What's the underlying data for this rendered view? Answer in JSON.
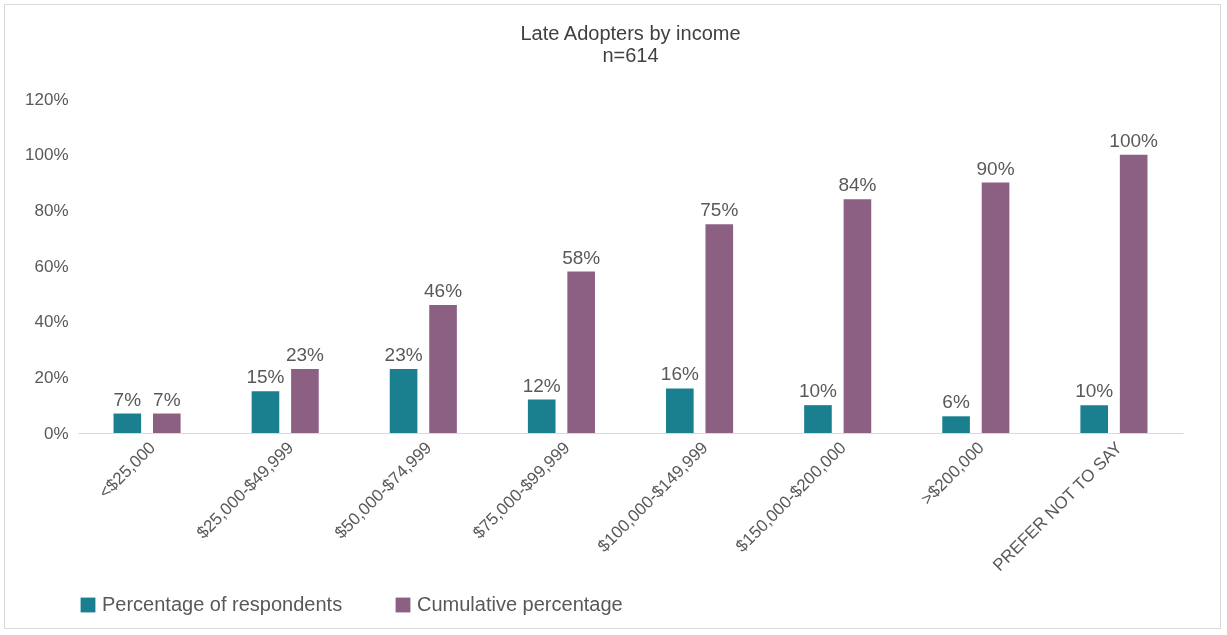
{
  "chart_data": {
    "type": "bar",
    "title": "Late Adopters by income",
    "subtitle": "n=614",
    "categories": [
      "<$25,000",
      "$25,000-$49,999",
      "$50,000-$74,999",
      "$75,000-$99,999",
      "$100,000-$149,999",
      "$150,000-$200,000",
      ">$200,000",
      "PREFER NOT TO SAY"
    ],
    "series": [
      {
        "name": "Percentage of respondents",
        "color": "#1a7f8e",
        "values": [
          7,
          15,
          23,
          12,
          16,
          10,
          6,
          10
        ],
        "value_labels": [
          "7%",
          "15%",
          "23%",
          "12%",
          "16%",
          "10%",
          "6%",
          "10%"
        ]
      },
      {
        "name": "Cumulative percentage",
        "color": "#8c6083",
        "values": [
          7,
          23,
          46,
          58,
          75,
          84,
          90,
          100
        ],
        "value_labels": [
          "7%",
          "23%",
          "46%",
          "58%",
          "75%",
          "84%",
          "90%",
          "100%"
        ]
      }
    ],
    "ylim": [
      0,
      120
    ],
    "yticks": [
      {
        "value": 0,
        "label": "0%"
      },
      {
        "value": 20,
        "label": "20%"
      },
      {
        "value": 40,
        "label": "40%"
      },
      {
        "value": 60,
        "label": "60%"
      },
      {
        "value": 80,
        "label": "80%"
      },
      {
        "value": 100,
        "label": "100%"
      },
      {
        "value": 120,
        "label": "120%"
      }
    ],
    "legend": "bottom"
  }
}
